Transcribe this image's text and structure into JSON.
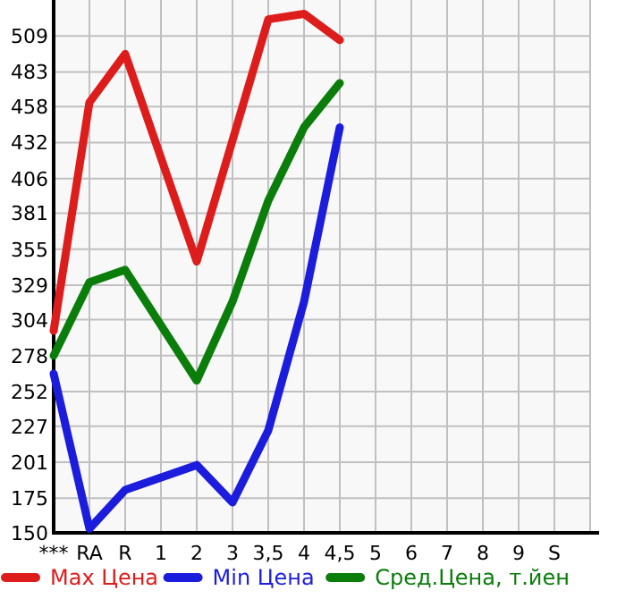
{
  "chart_data": {
    "type": "line",
    "categories": [
      "***",
      "RA",
      "R",
      "1",
      "2",
      "3",
      "3,5",
      "4",
      "4,5",
      "5",
      "6",
      "7",
      "8",
      "9",
      "S",
      null
    ],
    "ylim": [
      150,
      535
    ],
    "yticks": [
      150,
      175,
      201,
      227,
      252,
      278,
      304,
      329,
      355,
      381,
      406,
      432,
      458,
      483,
      509
    ],
    "grid": true,
    "legend": "bottom",
    "line_style": "solid",
    "series": [
      {
        "name": "Max Цена",
        "color": "#dd1c1c",
        "values": [
          296,
          461,
          496,
          null,
          346,
          null,
          521,
          525,
          506,
          null,
          null,
          null,
          null,
          null,
          null,
          null
        ]
      },
      {
        "name": "Min Цена",
        "color": "#1c1cdd",
        "values": [
          265,
          153,
          181,
          null,
          199,
          172,
          224,
          317,
          443,
          null,
          null,
          null,
          null,
          null,
          null,
          null
        ]
      },
      {
        "name": "Сред.Цена, т.йен",
        "color": "#0a7d0a",
        "values": [
          278,
          331,
          340,
          null,
          260,
          317,
          390,
          443,
          475,
          null,
          null,
          null,
          null,
          null,
          null,
          null
        ]
      }
    ]
  }
}
